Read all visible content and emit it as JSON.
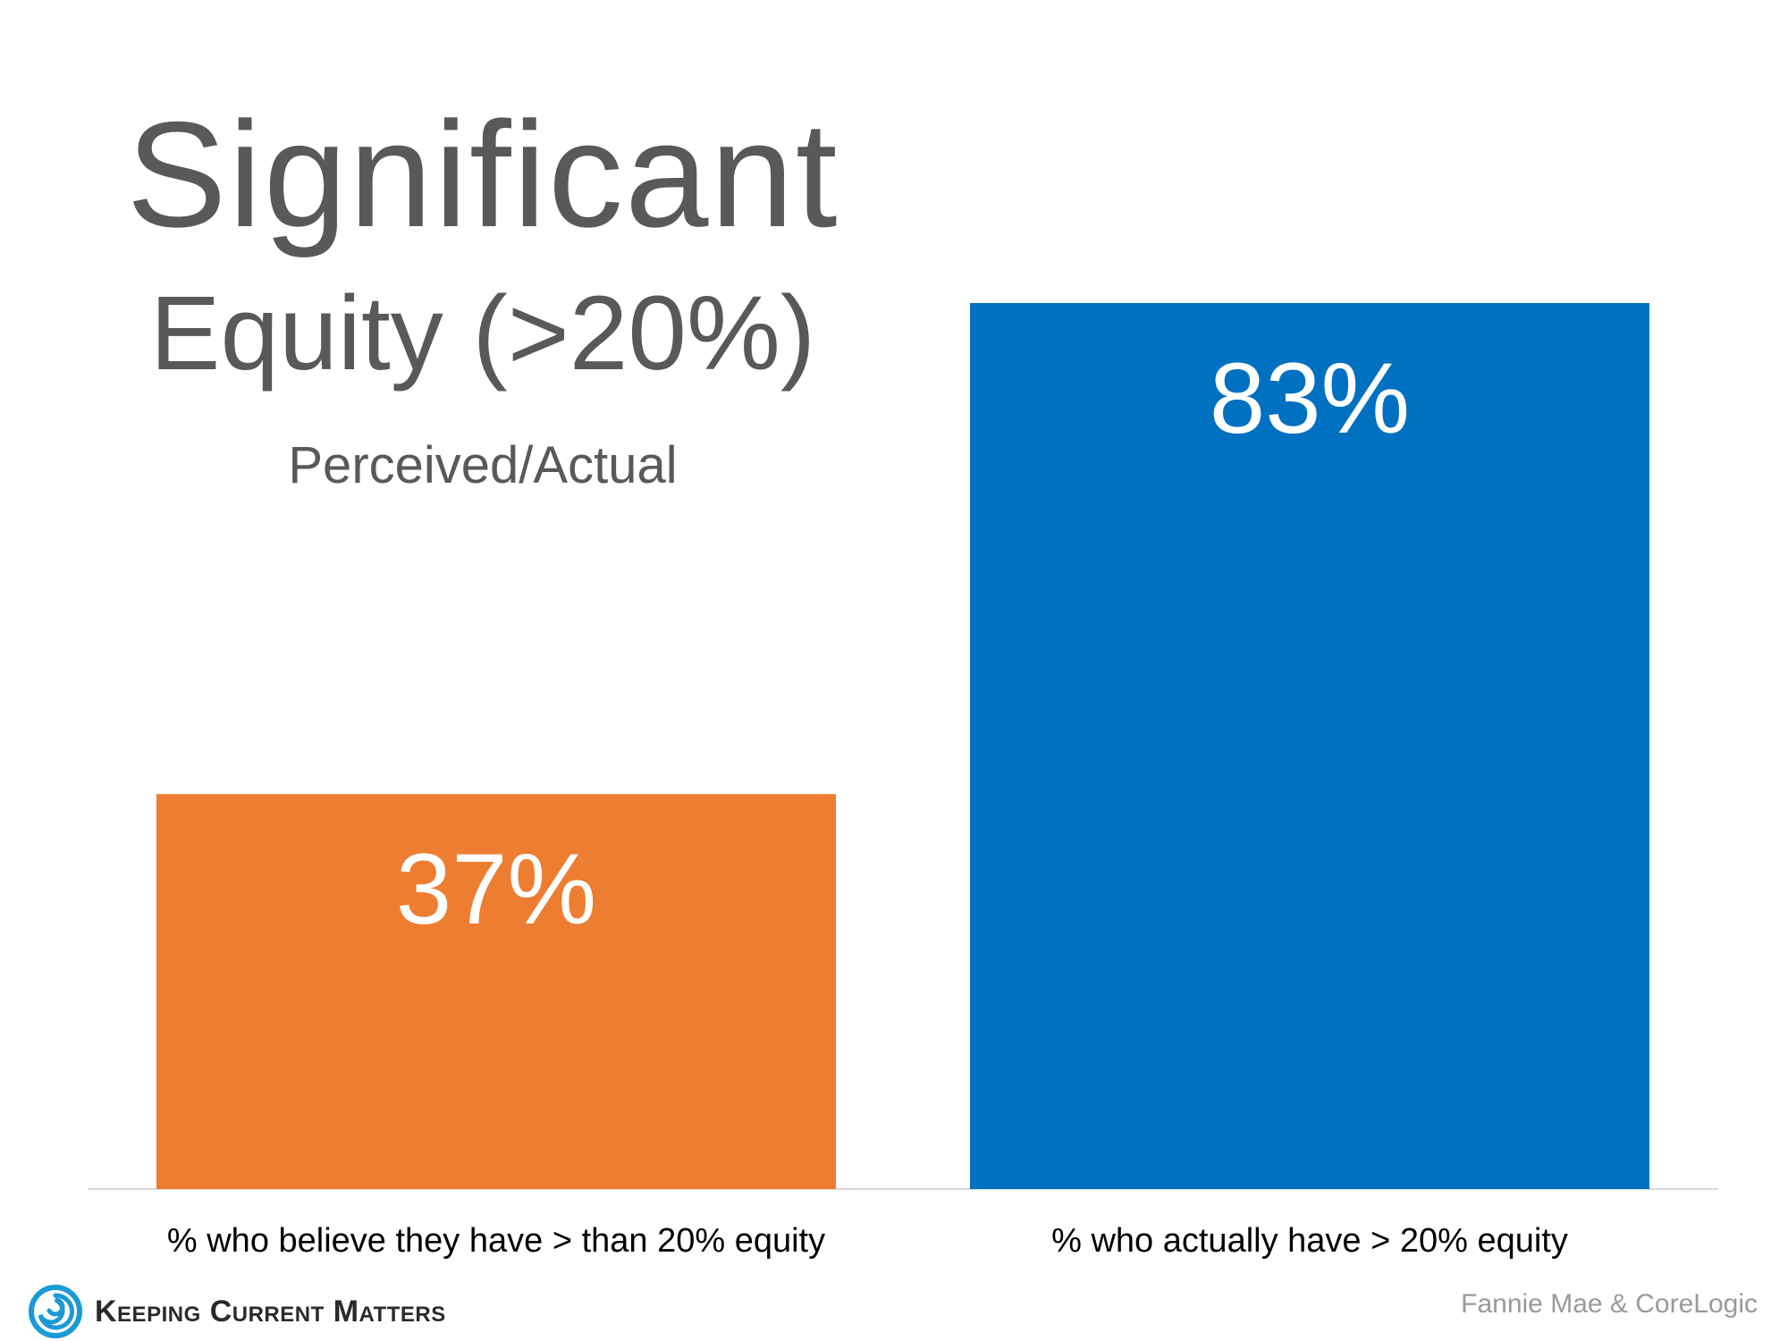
{
  "header": {
    "title": "Significant",
    "subtitle": "Equity (>20%)",
    "note": "Perceived/Actual"
  },
  "chart_data": {
    "type": "bar",
    "categories": [
      "% who believe they have > than 20% equity",
      "% who actually have > 20% equity"
    ],
    "values": [
      37,
      83
    ],
    "value_labels": [
      "37%",
      "83%"
    ],
    "colors": [
      "#ED7D31",
      "#0070C0"
    ],
    "ylim": [
      0,
      100
    ],
    "grid": false,
    "legend": "none"
  },
  "footer": {
    "brand": "Keeping Current Matters",
    "brand_color": "#1a9ad6",
    "source": "Fannie Mae & CoreLogic"
  }
}
